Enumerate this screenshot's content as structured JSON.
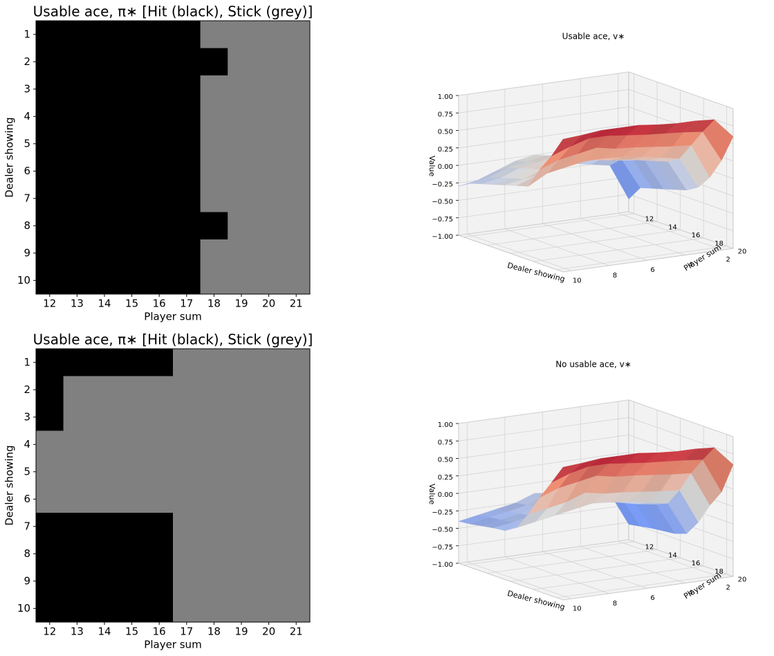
{
  "colors": {
    "hit": "#000000",
    "stick": "#808080",
    "pane": "#f2f2f2",
    "grid": "#cfcfcf"
  },
  "chart_data": [
    {
      "type": "heatmap",
      "title": "Usable ace, π∗  [Hit (black), Stick (grey)]",
      "xlabel": "Player sum",
      "ylabel": "Dealer showing",
      "x": [
        12,
        13,
        14,
        15,
        16,
        17,
        18,
        19,
        20,
        21
      ],
      "y": [
        1,
        2,
        3,
        4,
        5,
        6,
        7,
        8,
        9,
        10
      ],
      "legend": {
        "1": "Hit (black)",
        "0": "Stick (grey)"
      },
      "values": [
        [
          1,
          1,
          1,
          1,
          1,
          1,
          0,
          0,
          0,
          0
        ],
        [
          1,
          1,
          1,
          1,
          1,
          1,
          1,
          0,
          0,
          0
        ],
        [
          1,
          1,
          1,
          1,
          1,
          1,
          0,
          0,
          0,
          0
        ],
        [
          1,
          1,
          1,
          1,
          1,
          1,
          0,
          0,
          0,
          0
        ],
        [
          1,
          1,
          1,
          1,
          1,
          1,
          0,
          0,
          0,
          0
        ],
        [
          1,
          1,
          1,
          1,
          1,
          1,
          0,
          0,
          0,
          0
        ],
        [
          1,
          1,
          1,
          1,
          1,
          1,
          0,
          0,
          0,
          0
        ],
        [
          1,
          1,
          1,
          1,
          1,
          1,
          1,
          0,
          0,
          0
        ],
        [
          1,
          1,
          1,
          1,
          1,
          1,
          0,
          0,
          0,
          0
        ],
        [
          1,
          1,
          1,
          1,
          1,
          1,
          0,
          0,
          0,
          0
        ]
      ]
    },
    {
      "type": "surface",
      "title": "Usable ace, v∗",
      "xlabel": "Dealer showing",
      "ylabel": "Player sum",
      "zlabel": "Value",
      "dealer": [
        1,
        2,
        3,
        4,
        5,
        6,
        7,
        8,
        9,
        10
      ],
      "player": [
        12,
        13,
        14,
        15,
        16,
        17,
        18,
        19,
        20,
        21
      ],
      "zlim": [
        -1.0,
        1.0
      ],
      "colormap": "coolwarm",
      "xticks": [
        "10",
        "8",
        "6",
        "4",
        "2"
      ],
      "yticks": [
        "12",
        "14",
        "16",
        "18",
        "20"
      ],
      "zticks": [
        "−1.00",
        "−0.75",
        "−0.50",
        "−0.25",
        "0.00",
        "0.25",
        "0.50",
        "0.75",
        "1.00"
      ],
      "values": [
        [
          -0.82,
          -0.6,
          -0.55,
          -0.5,
          -0.45,
          -0.4,
          -0.3,
          -0.1,
          0.2,
          0.6
        ],
        [
          -0.3,
          -0.15,
          -0.1,
          -0.05,
          0.0,
          0.05,
          0.15,
          0.4,
          0.65,
          0.88
        ],
        [
          -0.25,
          -0.1,
          -0.05,
          0.0,
          0.05,
          0.1,
          0.2,
          0.42,
          0.68,
          0.9
        ],
        [
          -0.2,
          -0.05,
          0.0,
          0.05,
          0.08,
          0.15,
          0.25,
          0.45,
          0.7,
          0.9
        ],
        [
          -0.1,
          0.0,
          0.05,
          0.1,
          0.15,
          0.18,
          0.28,
          0.48,
          0.72,
          0.92
        ],
        [
          0.0,
          0.05,
          0.1,
          0.15,
          0.18,
          0.22,
          0.3,
          0.5,
          0.75,
          0.95
        ],
        [
          -0.05,
          0.0,
          0.05,
          0.1,
          0.15,
          0.2,
          0.3,
          0.55,
          0.78,
          0.95
        ],
        [
          -0.15,
          -0.05,
          0.0,
          0.05,
          0.1,
          0.15,
          0.25,
          0.5,
          0.78,
          0.95
        ],
        [
          -0.25,
          -0.15,
          -0.1,
          -0.05,
          0.0,
          0.1,
          0.2,
          0.45,
          0.7,
          0.92
        ],
        [
          -0.3,
          -0.2,
          -0.15,
          -0.1,
          -0.05,
          0.0,
          0.05,
          0.35,
          0.6,
          0.9
        ]
      ]
    },
    {
      "type": "heatmap",
      "title": "Usable ace, π∗  [Hit (black), Stick (grey)]",
      "xlabel": "Player sum",
      "ylabel": "Dealer showing",
      "x": [
        12,
        13,
        14,
        15,
        16,
        17,
        18,
        19,
        20,
        21
      ],
      "y": [
        1,
        2,
        3,
        4,
        5,
        6,
        7,
        8,
        9,
        10
      ],
      "legend": {
        "1": "Hit (black)",
        "0": "Stick (grey)"
      },
      "values": [
        [
          1,
          1,
          1,
          1,
          1,
          0,
          0,
          0,
          0,
          0
        ],
        [
          1,
          0,
          0,
          0,
          0,
          0,
          0,
          0,
          0,
          0
        ],
        [
          1,
          0,
          0,
          0,
          0,
          0,
          0,
          0,
          0,
          0
        ],
        [
          0,
          0,
          0,
          0,
          0,
          0,
          0,
          0,
          0,
          0
        ],
        [
          0,
          0,
          0,
          0,
          0,
          0,
          0,
          0,
          0,
          0
        ],
        [
          0,
          0,
          0,
          0,
          0,
          0,
          0,
          0,
          0,
          0
        ],
        [
          1,
          1,
          1,
          1,
          1,
          0,
          0,
          0,
          0,
          0
        ],
        [
          1,
          1,
          1,
          1,
          1,
          0,
          0,
          0,
          0,
          0
        ],
        [
          1,
          1,
          1,
          1,
          1,
          0,
          0,
          0,
          0,
          0
        ],
        [
          1,
          1,
          1,
          1,
          1,
          0,
          0,
          0,
          0,
          0
        ]
      ]
    },
    {
      "type": "surface",
      "title": "No usable ace, v∗",
      "xlabel": "Dealer showing",
      "ylabel": "Player sum",
      "zlabel": "Value",
      "dealer": [
        1,
        2,
        3,
        4,
        5,
        6,
        7,
        8,
        9,
        10
      ],
      "player": [
        12,
        13,
        14,
        15,
        16,
        17,
        18,
        19,
        20,
        21
      ],
      "zlim": [
        -1.0,
        1.0
      ],
      "colormap": "coolwarm",
      "xticks": [
        "10",
        "8",
        "6",
        "4",
        "2"
      ],
      "yticks": [
        "12",
        "14",
        "16",
        "18",
        "20"
      ],
      "zticks": [
        "−1.00",
        "−0.75",
        "−0.50",
        "−0.25",
        "0.00",
        "0.25",
        "0.50",
        "0.75",
        "1.00"
      ],
      "values": [
        [
          -0.78,
          -0.75,
          -0.72,
          -0.7,
          -0.68,
          -0.62,
          -0.4,
          -0.1,
          0.15,
          0.6
        ],
        [
          -0.3,
          -0.3,
          -0.28,
          -0.25,
          -0.22,
          -0.15,
          0.1,
          0.4,
          0.65,
          0.88
        ],
        [
          -0.25,
          -0.25,
          -0.22,
          -0.2,
          -0.18,
          -0.1,
          0.12,
          0.42,
          0.68,
          0.9
        ],
        [
          -0.22,
          -0.2,
          -0.18,
          -0.15,
          -0.12,
          -0.05,
          0.15,
          0.45,
          0.7,
          0.9
        ],
        [
          -0.18,
          -0.15,
          -0.12,
          -0.1,
          -0.08,
          -0.02,
          0.18,
          0.48,
          0.72,
          0.92
        ],
        [
          -0.15,
          -0.12,
          -0.1,
          -0.08,
          -0.05,
          0.0,
          0.2,
          0.5,
          0.75,
          0.95
        ],
        [
          -0.25,
          -0.22,
          -0.2,
          -0.18,
          -0.15,
          -0.05,
          0.25,
          0.55,
          0.78,
          0.95
        ],
        [
          -0.3,
          -0.28,
          -0.25,
          -0.22,
          -0.2,
          -0.1,
          0.15,
          0.5,
          0.78,
          0.95
        ],
        [
          -0.35,
          -0.32,
          -0.3,
          -0.28,
          -0.25,
          -0.15,
          0.1,
          0.45,
          0.72,
          0.92
        ],
        [
          -0.4,
          -0.38,
          -0.35,
          -0.32,
          -0.3,
          -0.2,
          0.05,
          0.35,
          0.62,
          0.9
        ]
      ]
    }
  ]
}
